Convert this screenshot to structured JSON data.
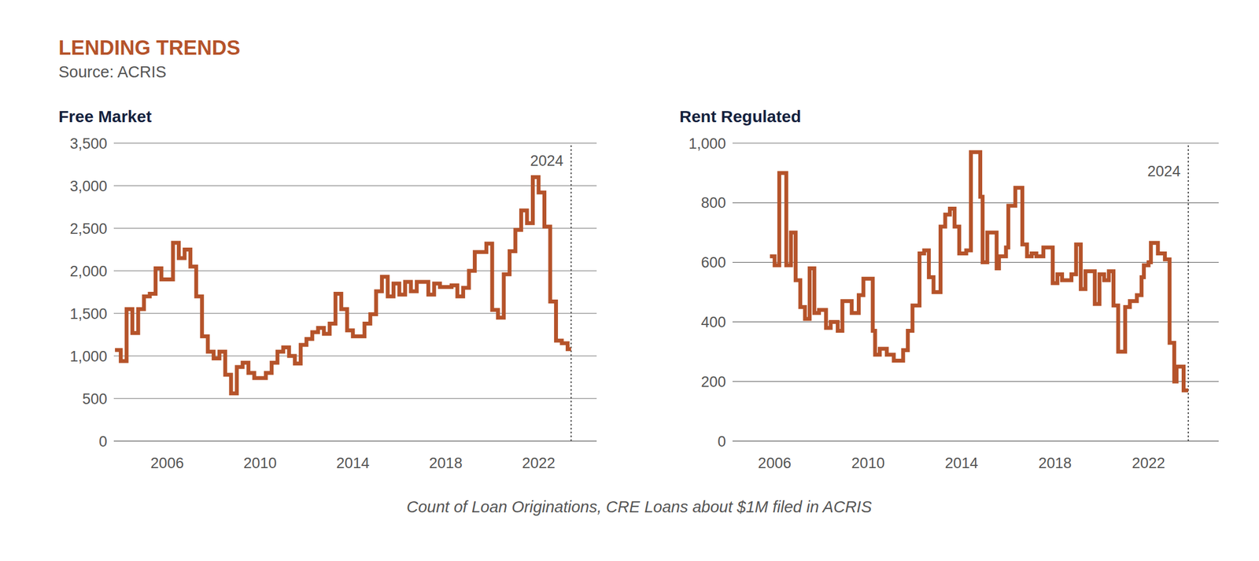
{
  "title": "LENDING TRENDS",
  "subtitle": "Source: ACRIS",
  "caption": "Count of Loan Originations, CRE Loans about $1M filed in ACRIS",
  "chart_data": [
    {
      "type": "line",
      "title": "Free Market",
      "line_style": "step",
      "color": "#b5532a",
      "grid": true,
      "x": [
        2003.75,
        2004.0,
        2004.25,
        2004.5,
        2004.75,
        2005.0,
        2005.25,
        2005.5,
        2005.75,
        2006.25,
        2006.5,
        2006.75,
        2007.0,
        2007.25,
        2007.5,
        2007.75,
        2008.0,
        2008.25,
        2008.5,
        2008.75,
        2009.0,
        2009.25,
        2009.5,
        2009.75,
        2010.25,
        2010.5,
        2010.75,
        2011.0,
        2011.25,
        2011.5,
        2011.75,
        2012.0,
        2012.25,
        2012.5,
        2012.75,
        2013.0,
        2013.25,
        2013.5,
        2013.75,
        2014.0,
        2014.5,
        2014.75,
        2015.0,
        2015.25,
        2015.5,
        2015.75,
        2016.0,
        2016.25,
        2016.5,
        2016.75,
        2017.25,
        2017.5,
        2017.75,
        2018.25,
        2018.5,
        2018.75,
        2019.0,
        2019.25,
        2019.75,
        2020.0,
        2020.25,
        2020.5,
        2020.75,
        2021.0,
        2021.25,
        2021.5,
        2021.75,
        2022.0,
        2022.25,
        2022.5,
        2022.75,
        2023.0,
        2023.25,
        2023.4
      ],
      "values": [
        1070,
        940,
        1550,
        1270,
        1550,
        1700,
        1730,
        2030,
        1900,
        2330,
        2150,
        2250,
        2050,
        1700,
        1230,
        1050,
        970,
        1050,
        780,
        560,
        870,
        920,
        800,
        740,
        800,
        920,
        1050,
        1100,
        1000,
        910,
        1130,
        1200,
        1280,
        1330,
        1260,
        1380,
        1730,
        1550,
        1300,
        1230,
        1380,
        1490,
        1760,
        1930,
        1700,
        1850,
        1720,
        1870,
        1760,
        1870,
        1720,
        1850,
        1810,
        1830,
        1700,
        1800,
        2000,
        2220,
        2320,
        1540,
        1450,
        1960,
        2230,
        2480,
        2710,
        2560,
        3100,
        2920,
        2520,
        1640,
        1180,
        1150,
        1080,
        1080
      ],
      "xlim": [
        2003.7,
        2024.5
      ],
      "xticks": [
        2006,
        2010,
        2014,
        2018,
        2022
      ],
      "ylim": [
        0,
        3500
      ],
      "yticks": [
        0,
        500,
        {
          "value": 1000,
          "label": "1,000"
        },
        {
          "value": 1500,
          "label": "1,500"
        },
        {
          "value": 2000,
          "label": "2,000"
        },
        {
          "value": 2500,
          "label": "2,500"
        },
        {
          "value": 3000,
          "label": "3,000"
        },
        {
          "value": 3500,
          "label": "3,500"
        }
      ],
      "annotations": [
        {
          "x": 2023.4,
          "text": "2024",
          "line_style": "dotted"
        }
      ]
    },
    {
      "type": "line",
      "title": "Rent Regulated",
      "line_style": "step",
      "color": "#b5532a",
      "grid": true,
      "x": [
        2005.8,
        2006.0,
        2006.2,
        2006.5,
        2006.7,
        2006.9,
        2007.1,
        2007.3,
        2007.5,
        2007.7,
        2007.9,
        2008.2,
        2008.4,
        2008.7,
        2008.9,
        2009.3,
        2009.6,
        2009.8,
        2010.2,
        2010.3,
        2010.5,
        2010.8,
        2011.1,
        2011.5,
        2011.7,
        2011.9,
        2012.2,
        2012.4,
        2012.6,
        2012.8,
        2013.1,
        2013.3,
        2013.5,
        2013.7,
        2013.9,
        2014.2,
        2014.4,
        2014.8,
        2014.9,
        2015.1,
        2015.5,
        2015.6,
        2015.9,
        2016.0,
        2016.3,
        2016.6,
        2016.8,
        2017.0,
        2017.2,
        2017.5,
        2017.9,
        2018.1,
        2018.3,
        2018.7,
        2018.9,
        2019.1,
        2019.3,
        2019.7,
        2019.9,
        2020.1,
        2020.3,
        2020.5,
        2020.7,
        2021.0,
        2021.2,
        2021.5,
        2021.7,
        2021.8,
        2022.0,
        2022.1,
        2022.4,
        2022.7,
        2022.9,
        2023.1,
        2023.2,
        2023.5,
        2023.7
      ],
      "values": [
        620,
        590,
        900,
        590,
        700,
        540,
        450,
        410,
        580,
        430,
        440,
        380,
        400,
        370,
        470,
        430,
        490,
        545,
        370,
        290,
        310,
        290,
        270,
        305,
        370,
        455,
        630,
        640,
        550,
        500,
        720,
        760,
        780,
        720,
        630,
        640,
        970,
        820,
        600,
        700,
        580,
        620,
        650,
        790,
        850,
        660,
        620,
        630,
        620,
        650,
        530,
        560,
        540,
        560,
        660,
        510,
        570,
        460,
        560,
        540,
        570,
        455,
        300,
        450,
        470,
        490,
        550,
        590,
        600,
        665,
        630,
        610,
        330,
        200,
        250,
        170,
        170
      ],
      "xlim": [
        2004.2,
        2025
      ],
      "xticks": [
        2006,
        2010,
        2014,
        2018,
        2022
      ],
      "ylim": [
        0,
        1000
      ],
      "yticks": [
        0,
        200,
        400,
        600,
        800,
        {
          "value": 1000,
          "label": "1,000"
        }
      ],
      "annotations": [
        {
          "x": 2023.7,
          "text": "2024",
          "line_style": "dotted"
        }
      ]
    }
  ]
}
